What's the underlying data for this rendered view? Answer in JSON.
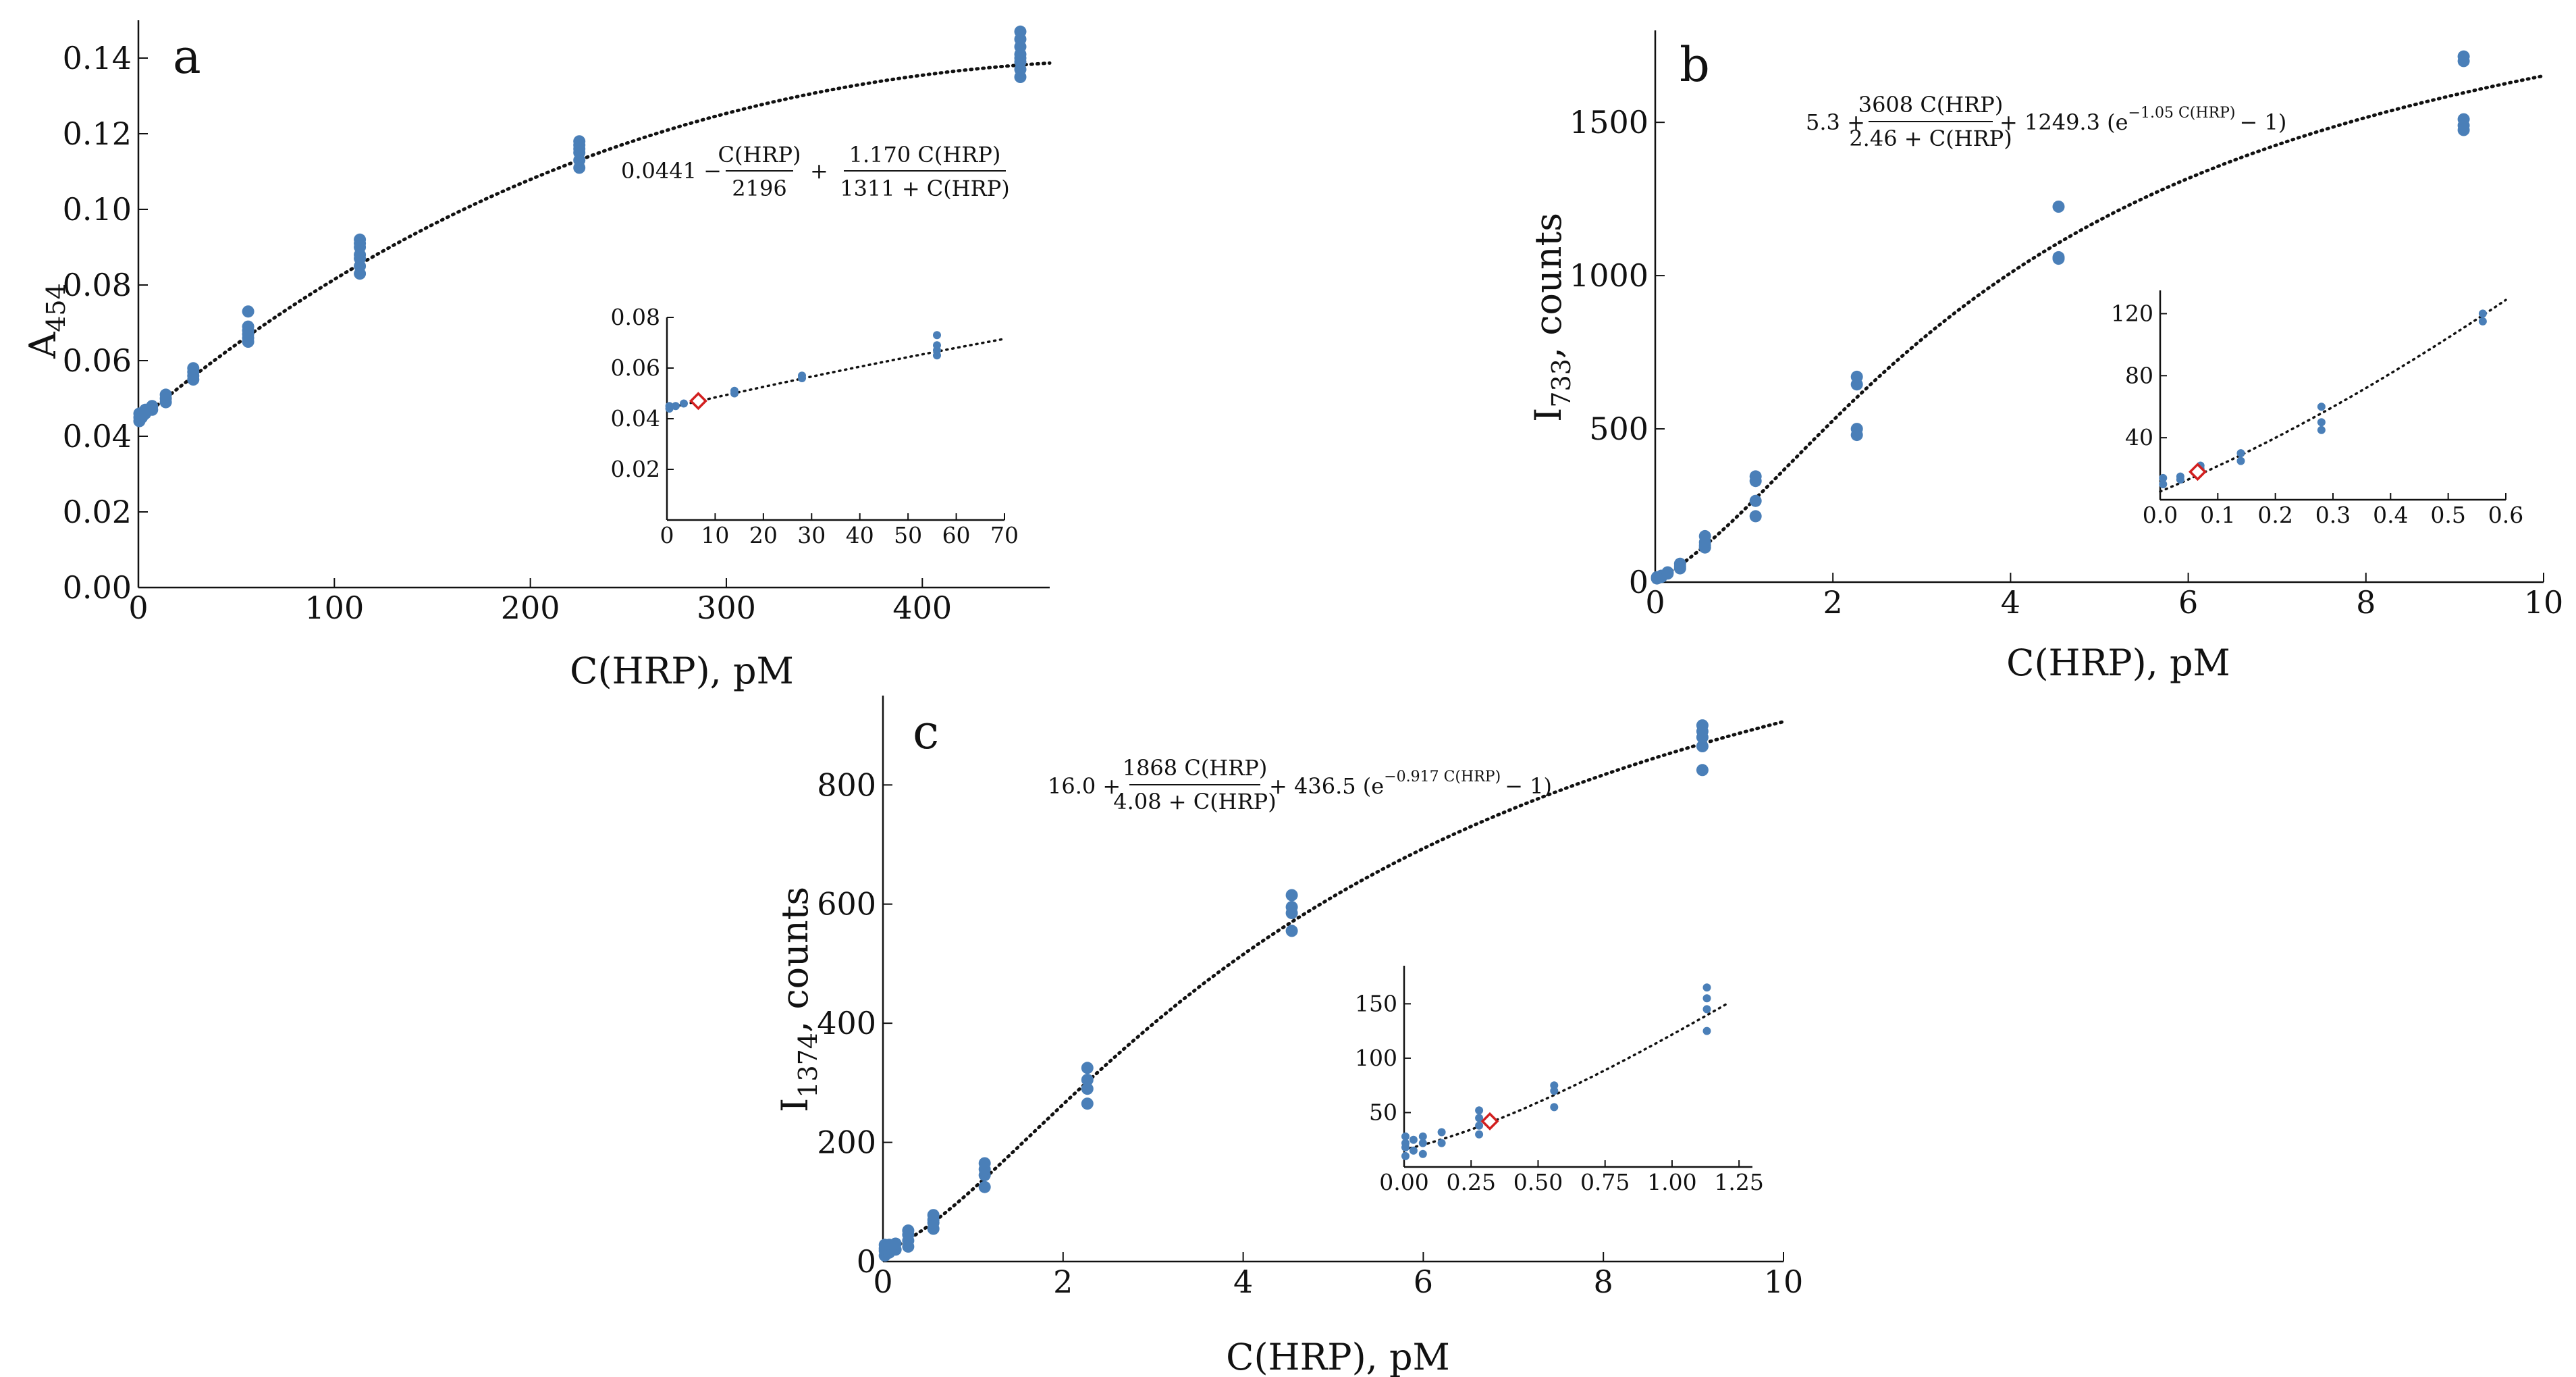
{
  "chart_data": [
    {
      "panel": "a",
      "type": "scatter",
      "xlabel": "C(HRP), pM",
      "ylabel_main": "A",
      "ylabel_sub": "454",
      "xlim": [
        0,
        465
      ],
      "ylim": [
        0,
        0.15
      ],
      "xticks": [
        0,
        100,
        200,
        300,
        400
      ],
      "yticks": [
        0,
        0.02,
        0.04,
        0.06,
        0.08,
        0.1,
        0.12,
        0.14
      ],
      "ytick_labels": [
        "0.00",
        "0.02",
        "0.04",
        "0.06",
        "0.08",
        "0.10",
        "0.12",
        "0.14"
      ],
      "equation": {
        "const": "0.0441 −",
        "f1_num": "C(HRP)",
        "f1_den": "2196",
        "plus": "+",
        "f2_num": "1.170 C(HRP)",
        "f2_den": "1311 + C(HRP)"
      },
      "series": [
        {
          "name": "measurements",
          "points": [
            [
              0.5,
              0.044
            ],
            [
              0.5,
              0.045
            ],
            [
              0.5,
              0.046
            ],
            [
              1.8,
              0.045
            ],
            [
              1.8,
              0.046
            ],
            [
              3.5,
              0.046
            ],
            [
              3.5,
              0.047
            ],
            [
              7,
              0.047
            ],
            [
              7,
              0.048
            ],
            [
              14,
              0.049
            ],
            [
              14,
              0.05
            ],
            [
              14,
              0.051
            ],
            [
              28,
              0.055
            ],
            [
              28,
              0.056
            ],
            [
              28,
              0.057
            ],
            [
              28,
              0.058
            ],
            [
              56,
              0.065
            ],
            [
              56,
              0.066
            ],
            [
              56,
              0.067
            ],
            [
              56,
              0.068
            ],
            [
              56,
              0.069
            ],
            [
              56,
              0.073
            ],
            [
              113,
              0.083
            ],
            [
              113,
              0.085
            ],
            [
              113,
              0.087
            ],
            [
              113,
              0.088
            ],
            [
              113,
              0.09
            ],
            [
              113,
              0.091
            ],
            [
              113,
              0.092
            ],
            [
              225,
              0.111
            ],
            [
              225,
              0.113
            ],
            [
              225,
              0.115
            ],
            [
              225,
              0.116
            ],
            [
              225,
              0.117
            ],
            [
              225,
              0.118
            ],
            [
              450,
              0.135
            ],
            [
              450,
              0.137
            ],
            [
              450,
              0.139
            ],
            [
              450,
              0.14
            ],
            [
              450,
              0.141
            ],
            [
              450,
              0.143
            ],
            [
              450,
              0.145
            ],
            [
              450,
              0.147
            ]
          ]
        }
      ],
      "fit": {
        "type": "a",
        "x_range": [
          0,
          465
        ]
      },
      "inset": {
        "xlim": [
          0,
          70
        ],
        "ylim": [
          0,
          0.08
        ],
        "xticks": [
          0,
          10,
          20,
          30,
          40,
          50,
          60,
          70
        ],
        "yticks": [
          0.02,
          0.04,
          0.06,
          0.08
        ],
        "ytick_labels": [
          "0.02",
          "0.04",
          "0.06",
          "0.08"
        ],
        "points": [
          [
            0.5,
            0.044
          ],
          [
            0.5,
            0.045
          ],
          [
            1.8,
            0.045
          ],
          [
            3.5,
            0.046
          ],
          [
            7,
            0.047
          ],
          [
            14,
            0.05
          ],
          [
            14,
            0.051
          ],
          [
            28,
            0.056
          ],
          [
            28,
            0.057
          ],
          [
            56,
            0.065
          ],
          [
            56,
            0.067
          ],
          [
            56,
            0.069
          ],
          [
            56,
            0.073
          ]
        ],
        "fit_x_range": [
          0,
          70
        ],
        "marker": [
          6.5,
          0.047
        ]
      }
    },
    {
      "panel": "b",
      "type": "scatter",
      "xlabel": "C(HRP), pM",
      "ylabel_main": "I",
      "ylabel_sub": "733",
      "ylabel_tail": ", counts",
      "xlim": [
        0,
        10
      ],
      "ylim": [
        0,
        1800
      ],
      "xticks": [
        0,
        2,
        4,
        6,
        8,
        10
      ],
      "yticks": [
        0,
        500,
        1000,
        1500
      ],
      "ytick_labels": [
        "0",
        "500",
        "1000",
        "1500"
      ],
      "equation": {
        "const": "5.3 +",
        "f1_num": "3608 C(HRP)",
        "f1_den": "2.46 + C(HRP)",
        "tail": "+ 1249.3 (e",
        "sup": "−1.05 C(HRP)",
        "close": "− 1)"
      },
      "series": [
        {
          "name": "measurements",
          "points": [
            [
              0.02,
              12
            ],
            [
              0.02,
              16
            ],
            [
              0.07,
              17
            ],
            [
              0.07,
              21
            ],
            [
              0.14,
              28
            ],
            [
              0.14,
              32
            ],
            [
              0.28,
              45
            ],
            [
              0.28,
              52
            ],
            [
              0.28,
              60
            ],
            [
              0.56,
              113
            ],
            [
              0.56,
              120
            ],
            [
              0.56,
              130
            ],
            [
              0.56,
              150
            ],
            [
              1.13,
              215
            ],
            [
              1.13,
              265
            ],
            [
              1.13,
              330
            ],
            [
              1.13,
              345
            ],
            [
              2.27,
              480
            ],
            [
              2.27,
              500
            ],
            [
              2.27,
              645
            ],
            [
              2.27,
              670
            ],
            [
              4.54,
              1055
            ],
            [
              4.54,
              1060
            ],
            [
              4.54,
              1225
            ],
            [
              9.1,
              1475
            ],
            [
              9.1,
              1490
            ],
            [
              9.1,
              1510
            ],
            [
              9.1,
              1700
            ],
            [
              9.1,
              1715
            ]
          ]
        }
      ],
      "fit": {
        "type": "b",
        "x_range": [
          0,
          10
        ]
      },
      "inset": {
        "xlim": [
          0,
          0.6
        ],
        "ylim": [
          0,
          135
        ],
        "xticks": [
          0,
          0.1,
          0.2,
          0.3,
          0.4,
          0.5,
          0.6
        ],
        "xtick_labels": [
          "0.0",
          "0.1",
          "0.2",
          "0.3",
          "0.4",
          "0.5",
          "0.6"
        ],
        "yticks": [
          40,
          80,
          120
        ],
        "ytick_labels": [
          "40",
          "80",
          "120"
        ],
        "points": [
          [
            0.005,
            10
          ],
          [
            0.005,
            14
          ],
          [
            0.035,
            13
          ],
          [
            0.035,
            15
          ],
          [
            0.07,
            20
          ],
          [
            0.07,
            22
          ],
          [
            0.14,
            25
          ],
          [
            0.14,
            30
          ],
          [
            0.28,
            45
          ],
          [
            0.28,
            50
          ],
          [
            0.28,
            60
          ],
          [
            0.56,
            115
          ],
          [
            0.56,
            120
          ]
        ],
        "fit_x_range": [
          0,
          0.6
        ],
        "marker": [
          0.065,
          18
        ]
      }
    },
    {
      "panel": "c",
      "type": "scatter",
      "xlabel": "C(HRP), pM",
      "ylabel_main": "I",
      "ylabel_sub": "1374",
      "ylabel_tail": ", counts",
      "xlim": [
        0,
        10
      ],
      "ylim": [
        0,
        950
      ],
      "xticks": [
        0,
        2,
        4,
        6,
        8,
        10
      ],
      "yticks": [
        0,
        200,
        400,
        600,
        800
      ],
      "ytick_labels": [
        "0",
        "200",
        "400",
        "600",
        "800"
      ],
      "equation": {
        "const": "16.0 +",
        "f1_num": "1868 C(HRP)",
        "f1_den": "4.08 + C(HRP)",
        "tail": "+ 436.5 (e",
        "sup": "−0.917 C(HRP)",
        "close": "− 1)"
      },
      "series": [
        {
          "name": "measurements",
          "points": [
            [
              0.02,
              10
            ],
            [
              0.02,
              18
            ],
            [
              0.02,
              22
            ],
            [
              0.02,
              28
            ],
            [
              0.07,
              15
            ],
            [
              0.07,
              22
            ],
            [
              0.07,
              28
            ],
            [
              0.14,
              20
            ],
            [
              0.14,
              30
            ],
            [
              0.28,
              25
            ],
            [
              0.28,
              35
            ],
            [
              0.28,
              45
            ],
            [
              0.28,
              52
            ],
            [
              0.56,
              55
            ],
            [
              0.56,
              65
            ],
            [
              0.56,
              70
            ],
            [
              0.56,
              78
            ],
            [
              1.13,
              125
            ],
            [
              1.13,
              145
            ],
            [
              1.13,
              155
            ],
            [
              1.13,
              165
            ],
            [
              2.27,
              265
            ],
            [
              2.27,
              290
            ],
            [
              2.27,
              305
            ],
            [
              2.27,
              325
            ],
            [
              4.54,
              555
            ],
            [
              4.54,
              585
            ],
            [
              4.54,
              595
            ],
            [
              4.54,
              615
            ],
            [
              9.1,
              825
            ],
            [
              9.1,
              865
            ],
            [
              9.1,
              880
            ],
            [
              9.1,
              890
            ],
            [
              9.1,
              900
            ]
          ]
        }
      ],
      "fit": {
        "type": "c",
        "x_range": [
          0,
          10
        ]
      },
      "inset": {
        "xlim": [
          0,
          1.3
        ],
        "ylim": [
          0,
          185
        ],
        "xticks": [
          0,
          0.25,
          0.5,
          0.75,
          1.0,
          1.25
        ],
        "xtick_labels": [
          "0.00",
          "0.25",
          "0.50",
          "0.75",
          "1.00",
          "1.25"
        ],
        "yticks": [
          50,
          100,
          150
        ],
        "ytick_labels": [
          "50",
          "100",
          "150"
        ],
        "points": [
          [
            0.005,
            10
          ],
          [
            0.005,
            18
          ],
          [
            0.005,
            22
          ],
          [
            0.005,
            28
          ],
          [
            0.035,
            15
          ],
          [
            0.035,
            25
          ],
          [
            0.07,
            12
          ],
          [
            0.07,
            22
          ],
          [
            0.07,
            28
          ],
          [
            0.14,
            22
          ],
          [
            0.14,
            32
          ],
          [
            0.28,
            30
          ],
          [
            0.28,
            38
          ],
          [
            0.28,
            45
          ],
          [
            0.28,
            52
          ],
          [
            0.56,
            55
          ],
          [
            0.56,
            70
          ],
          [
            0.56,
            75
          ],
          [
            1.13,
            125
          ],
          [
            1.13,
            145
          ],
          [
            1.13,
            155
          ],
          [
            1.13,
            165
          ]
        ],
        "fit_x_range": [
          0,
          1.2
        ],
        "marker": [
          0.32,
          42
        ]
      }
    }
  ]
}
